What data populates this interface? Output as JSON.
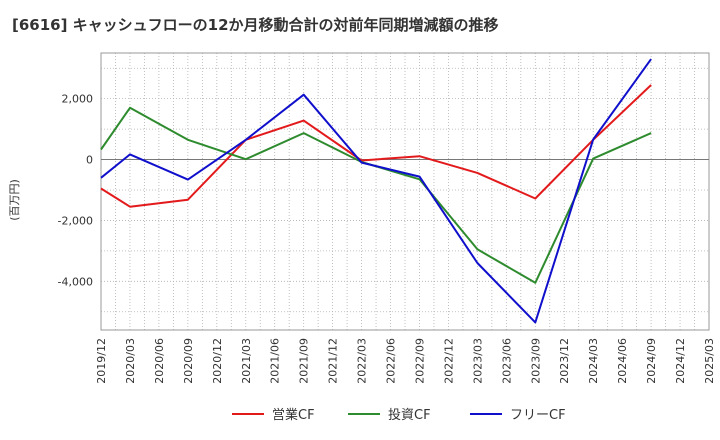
{
  "chart_data": {
    "type": "line",
    "title": "[6616]  キャッシュフローの12か月移動合計の対前年同期増減額の推移",
    "ylabel": "(百万円)",
    "xlabel": "",
    "ylim": [
      -5600,
      3500
    ],
    "yticks": [
      2000,
      0,
      -2000,
      -4000
    ],
    "ytick_labels": [
      "2,000",
      "0",
      "-2,000",
      "-4,000"
    ],
    "x_ticks": [
      "2019/12",
      "2020/03",
      "2020/06",
      "2020/09",
      "2020/12",
      "2021/03",
      "2021/06",
      "2021/09",
      "2021/12",
      "2022/03",
      "2022/06",
      "2022/09",
      "2022/12",
      "2023/03",
      "2023/06",
      "2023/09",
      "2023/12",
      "2024/03",
      "2024/06",
      "2024/09",
      "2024/12",
      "2025/03"
    ],
    "grid": true,
    "legend_position": "bottom",
    "series": [
      {
        "name": "営業CF",
        "color": "#e31a1c",
        "points": [
          {
            "x": "2019/12",
            "y": -950
          },
          {
            "x": "2020/03",
            "y": -1550
          },
          {
            "x": "2020/09",
            "y": -1320
          },
          {
            "x": "2021/03",
            "y": 650
          },
          {
            "x": "2021/09",
            "y": 1280
          },
          {
            "x": "2022/03",
            "y": -30
          },
          {
            "x": "2022/09",
            "y": 110
          },
          {
            "x": "2023/03",
            "y": -440
          },
          {
            "x": "2023/09",
            "y": -1280
          },
          {
            "x": "2024/03",
            "y": 650
          },
          {
            "x": "2024/09",
            "y": 2450
          }
        ]
      },
      {
        "name": "投資CF",
        "color": "#2e8b2e",
        "points": [
          {
            "x": "2019/12",
            "y": 330
          },
          {
            "x": "2020/03",
            "y": 1700
          },
          {
            "x": "2020/09",
            "y": 650
          },
          {
            "x": "2021/03",
            "y": 10
          },
          {
            "x": "2021/09",
            "y": 870
          },
          {
            "x": "2022/03",
            "y": -80
          },
          {
            "x": "2022/09",
            "y": -650
          },
          {
            "x": "2023/03",
            "y": -2950
          },
          {
            "x": "2023/09",
            "y": -4050
          },
          {
            "x": "2024/03",
            "y": 30
          },
          {
            "x": "2024/09",
            "y": 870
          }
        ]
      },
      {
        "name": "フリーCF",
        "color": "#1010cc",
        "points": [
          {
            "x": "2019/12",
            "y": -600
          },
          {
            "x": "2020/03",
            "y": 170
          },
          {
            "x": "2020/09",
            "y": -660
          },
          {
            "x": "2021/03",
            "y": 650
          },
          {
            "x": "2021/09",
            "y": 2130
          },
          {
            "x": "2022/03",
            "y": -100
          },
          {
            "x": "2022/09",
            "y": -560
          },
          {
            "x": "2023/03",
            "y": -3400
          },
          {
            "x": "2023/09",
            "y": -5350
          },
          {
            "x": "2024/03",
            "y": 660
          },
          {
            "x": "2024/09",
            "y": 3300
          }
        ]
      }
    ]
  }
}
